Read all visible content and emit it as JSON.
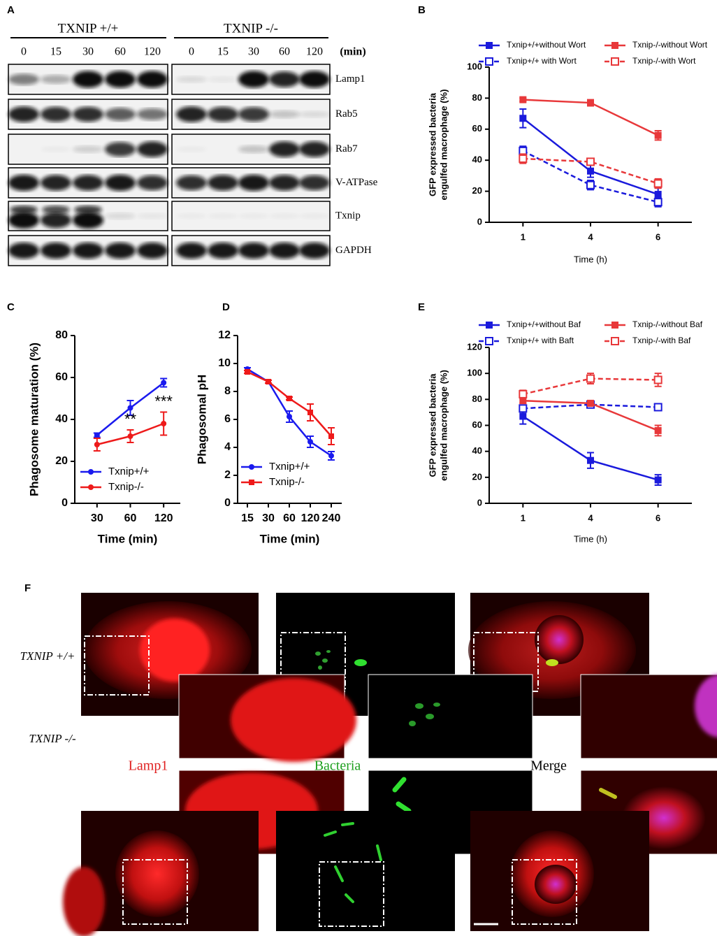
{
  "panel_labels": [
    "A",
    "B",
    "C",
    "D",
    "E",
    "F"
  ],
  "blot": {
    "groups": [
      "TXNIP +/+",
      "TXNIP -/-"
    ],
    "times": [
      "0",
      "15",
      "30",
      "60",
      "120"
    ],
    "time_unit": "(min)",
    "proteins": [
      "Lamp1",
      "Rab5",
      "Rab7",
      "V-ATPase",
      "Txnip",
      "GAPDH"
    ]
  },
  "micrograph": {
    "rows": [
      "TXNIP +/+",
      "TXNIP -/-"
    ],
    "channels": [
      "Lamp1",
      "Bacteria",
      "Merge"
    ]
  },
  "chart_data": [
    {
      "type": "line",
      "categories": [
        "1",
        "4",
        "6"
      ],
      "xlabel": "Time (h)",
      "ylabel": [
        "GFP expressed bacteria",
        "engulfed macrophage (%)"
      ],
      "ylim": [
        0,
        100
      ],
      "yticks": [
        0,
        20,
        40,
        60,
        80,
        100
      ],
      "series": [
        {
          "name": "Txnip+/+without Wort",
          "color": "#1a1adc",
          "linestyle": "solid",
          "marker": "square",
          "values": [
            67,
            33,
            18
          ],
          "errors": [
            6,
            4,
            4
          ]
        },
        {
          "name": "Txnip+/+ with Wort",
          "color": "#1a1adc",
          "linestyle": "dashed",
          "marker": "open-square",
          "values": [
            46,
            24,
            13
          ],
          "errors": [
            3,
            3,
            3
          ]
        },
        {
          "name": "Txnip-/-without Wort",
          "color": "#e8383a",
          "linestyle": "solid",
          "marker": "square",
          "values": [
            79,
            77,
            56
          ],
          "errors": [
            1,
            2,
            3
          ]
        },
        {
          "name": "Txnip-/-with Wort",
          "color": "#e8383a",
          "linestyle": "dashed",
          "marker": "open-square",
          "values": [
            41,
            39,
            25
          ],
          "errors": [
            3,
            2,
            3
          ]
        }
      ]
    },
    {
      "type": "line",
      "categories": [
        "30",
        "60",
        "120"
      ],
      "xlabel": "Time (min)",
      "ylabel": [
        "Phagosome maturation (%)"
      ],
      "ylim": [
        0,
        80
      ],
      "yticks": [
        0,
        20,
        40,
        60,
        80
      ],
      "series": [
        {
          "name": "Txnip+/+",
          "color": "#1a1aee",
          "linestyle": "solid",
          "marker": "circle",
          "values": [
            32.5,
            45.5,
            57.5
          ],
          "errors": [
            1,
            3.5,
            2
          ]
        },
        {
          "name": "Txnip-/-",
          "color": "#ee1a1a",
          "linestyle": "solid",
          "marker": "circle",
          "values": [
            28,
            32,
            38
          ],
          "errors": [
            3,
            3,
            5.5
          ]
        }
      ],
      "annotations": [
        {
          "text": "**",
          "category": "60"
        },
        {
          "text": "***",
          "category": "120"
        }
      ]
    },
    {
      "type": "line",
      "categories": [
        "15",
        "30",
        "60",
        "120",
        "240"
      ],
      "xlabel": "Time (min)",
      "ylabel": [
        "Phagosomal pH"
      ],
      "ylim": [
        0,
        12
      ],
      "yticks": [
        0,
        2,
        4,
        6,
        8,
        10,
        12
      ],
      "series": [
        {
          "name": "Txnip+/+",
          "color": "#1a1aee",
          "linestyle": "solid",
          "marker": "circle",
          "values": [
            9.6,
            8.7,
            6.2,
            4.4,
            3.4
          ],
          "errors": [
            0.1,
            0.1,
            0.4,
            0.4,
            0.3
          ]
        },
        {
          "name": "Txnip-/-",
          "color": "#ee1a1a",
          "linestyle": "solid",
          "marker": "square",
          "values": [
            9.4,
            8.7,
            7.5,
            6.5,
            4.8
          ],
          "errors": [
            0.1,
            0.1,
            0.1,
            0.6,
            0.6
          ]
        }
      ]
    },
    {
      "type": "line",
      "categories": [
        "1",
        "4",
        "6"
      ],
      "xlabel": "Time (h)",
      "ylabel": [
        "GFP expressed bacteria",
        "engulfed macrophage (%)"
      ],
      "ylim": [
        0,
        120
      ],
      "yticks": [
        0,
        20,
        40,
        60,
        80,
        100,
        120
      ],
      "series": [
        {
          "name": "Txnip+/+without Baf",
          "color": "#1a1adc",
          "linestyle": "solid",
          "marker": "square",
          "values": [
            67,
            33,
            18
          ],
          "errors": [
            6,
            6,
            4
          ]
        },
        {
          "name": "Txnip+/+ with Baft",
          "color": "#1a1adc",
          "linestyle": "dashed",
          "marker": "open-square",
          "values": [
            73,
            76,
            74
          ],
          "errors": [
            2,
            2,
            2
          ]
        },
        {
          "name": "Txnip-/-without Baf",
          "color": "#e8383a",
          "linestyle": "solid",
          "marker": "square",
          "values": [
            79,
            77,
            56
          ],
          "errors": [
            2,
            2,
            4
          ]
        },
        {
          "name": "Txnip-/-with Baf",
          "color": "#e8383a",
          "linestyle": "dashed",
          "marker": "open-square",
          "values": [
            84,
            96,
            95
          ],
          "errors": [
            3,
            4,
            5
          ]
        }
      ]
    }
  ]
}
